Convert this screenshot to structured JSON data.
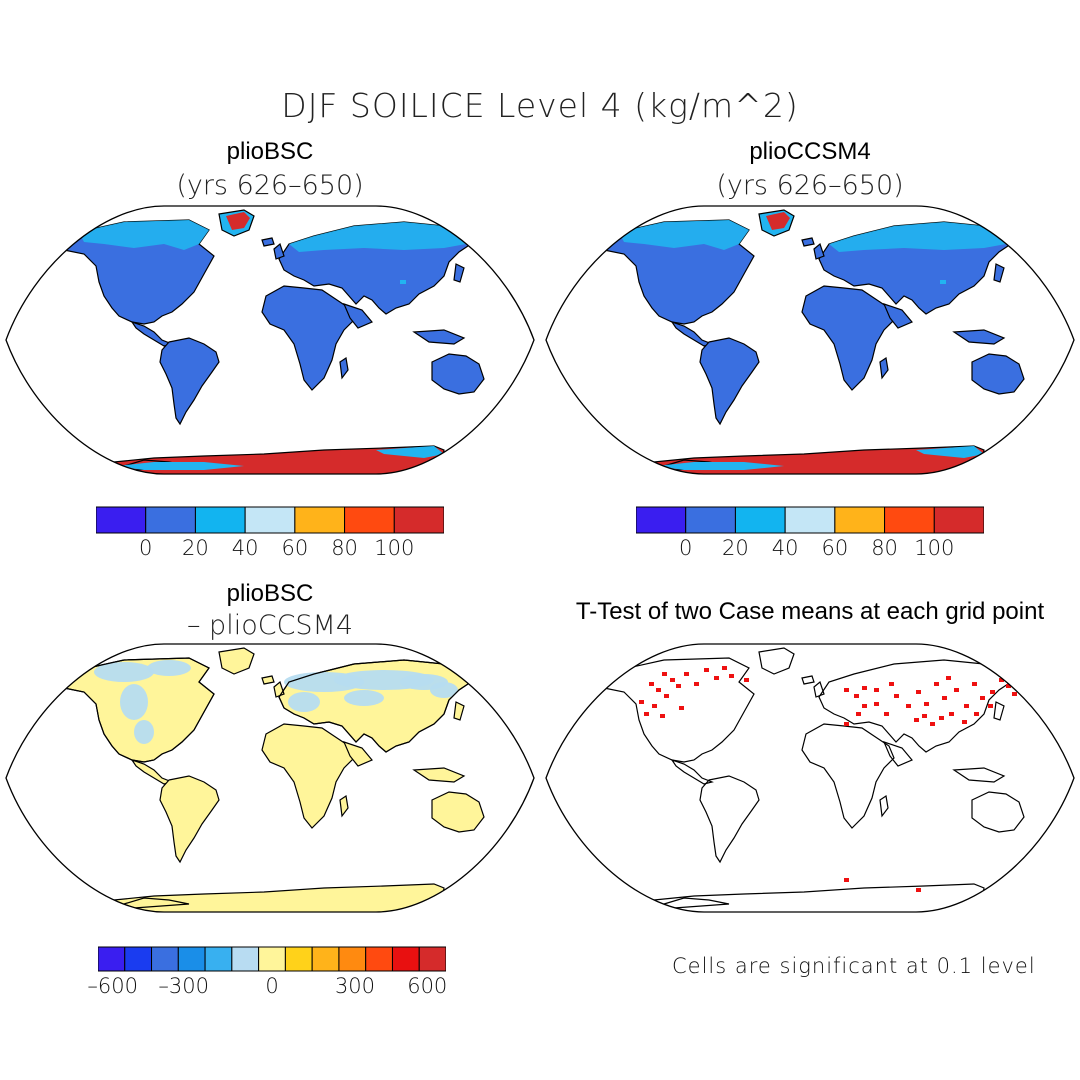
{
  "title": "DJF SOILICE Level 4 (kg/m^2)",
  "colors": {
    "land_low": "#3a6fe0",
    "land_cyan": "#22b4f0",
    "ice_red": "#d52b2b",
    "diff_fill": "#fff59a",
    "diff_blue": "#b6dcf0",
    "sig_red": "#ee1111",
    "coast": "#000000"
  },
  "panels": [
    {
      "title": "plioBSC",
      "subtitle": "(yrs 626–650)",
      "fill": "absolute"
    },
    {
      "title": "plioCCSM4",
      "subtitle": "(yrs 626–650)",
      "fill": "absolute"
    },
    {
      "title": "plioBSC",
      "subtitle": "– plioCCSM4",
      "fill": "difference"
    },
    {
      "title": "T-Test of two Case means at each grid point",
      "subtitle": "",
      "fill": "significance"
    }
  ],
  "colorbars": {
    "absolute": {
      "colors": [
        "#3a1ef0",
        "#3a6fe0",
        "#12b4f0",
        "#c4e6f6",
        "#ffb31a",
        "#ff4a10",
        "#d52b2b"
      ],
      "labels": [
        "0",
        "20",
        "40",
        "60",
        "80",
        "100"
      ]
    },
    "difference": {
      "colors": [
        "#3a1ef0",
        "#1a3cf0",
        "#3a6fe0",
        "#1a8ee8",
        "#38b0f0",
        "#b8dcf2",
        "#fff59a",
        "#ffd21a",
        "#ffb31a",
        "#ff8a10",
        "#ff4a10",
        "#e81010",
        "#d52b2b"
      ],
      "labels": [
        "–600",
        "–300",
        "0",
        "300",
        "600"
      ]
    }
  },
  "footnote": "Cells are significant at 0.1 level"
}
